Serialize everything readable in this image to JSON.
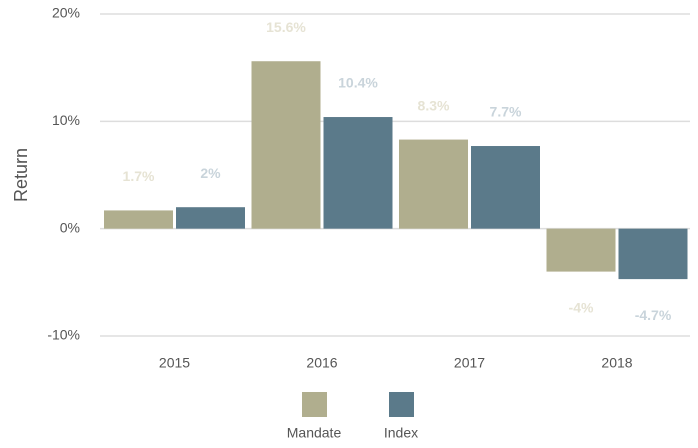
{
  "chart_data": {
    "type": "bar",
    "y_label": "Return",
    "categories": [
      "2015",
      "2016",
      "2017",
      "2018"
    ],
    "series": [
      {
        "name": "Mandate",
        "color": "#b0ae8e",
        "label_color": "#e6e3d4",
        "values": [
          1.7,
          15.6,
          8.3,
          -4
        ],
        "value_labels": [
          "1.7%",
          "15.6%",
          "8.3%",
          "-4%"
        ]
      },
      {
        "name": "Index",
        "color": "#5b7a8a",
        "label_color": "#c9d4db",
        "values": [
          2,
          10.4,
          7.7,
          -4.7
        ],
        "value_labels": [
          "2%",
          "10.4%",
          "7.7%",
          "-4.7%"
        ]
      }
    ],
    "ylim": [
      -10,
      20
    ],
    "yticks": [
      {
        "value": -10,
        "label": "-10%"
      },
      {
        "value": 0,
        "label": "0%"
      },
      {
        "value": 10,
        "label": "10%"
      },
      {
        "value": 20,
        "label": "20%"
      }
    ],
    "grid": true,
    "legend": "bottom"
  }
}
